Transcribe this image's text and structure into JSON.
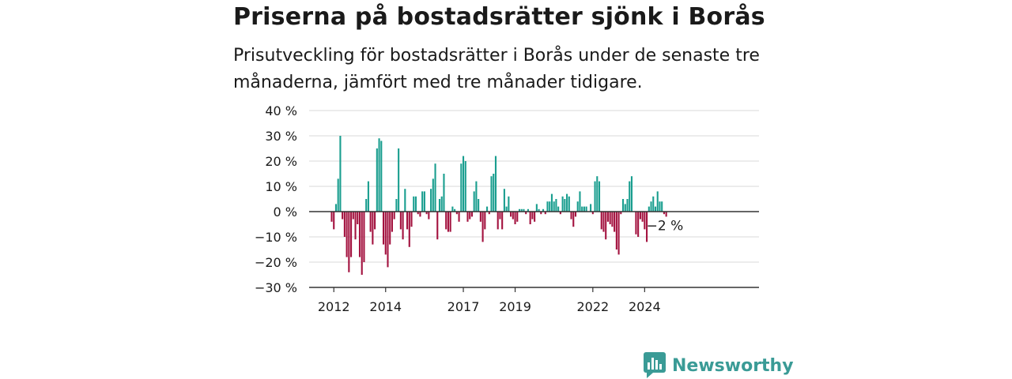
{
  "header": {
    "title": "Priserna på bostadsrätter sjönk i Borås",
    "subtitle": "Prisutveckling för bostadsrätter i Borås under de senaste tre månaderna, jämfört med tre månader tidigare."
  },
  "brand": {
    "name": "Newsworthy",
    "icon": "newsworthy-logo-icon",
    "color": "#3a9b96"
  },
  "chart_data": {
    "type": "bar",
    "x_unit": "month",
    "x_start": "2011-12",
    "y_unit": "%",
    "ylim": [
      -30,
      40
    ],
    "yticks": [
      {
        "value": 40,
        "label": "40 %"
      },
      {
        "value": 30,
        "label": "30 %"
      },
      {
        "value": 20,
        "label": "20 %"
      },
      {
        "value": 10,
        "label": "10 %"
      },
      {
        "value": 0,
        "label": "0 %"
      },
      {
        "value": -10,
        "label": "−10 %"
      },
      {
        "value": -20,
        "label": "−20 %"
      },
      {
        "value": -30,
        "label": "−30 %"
      }
    ],
    "xticks": [
      {
        "label": "2012",
        "index": 1
      },
      {
        "label": "2014",
        "index": 25
      },
      {
        "label": "2017",
        "index": 61
      },
      {
        "label": "2019",
        "index": 85
      },
      {
        "label": "2022",
        "index": 121
      },
      {
        "label": "2024",
        "index": 145
      }
    ],
    "grid": true,
    "colors": {
      "positive": "#1a9e8f",
      "negative": "#a3123f",
      "grid": "#d9d9d9",
      "axis": "#333333"
    },
    "last_value_label": "−2 %",
    "values": [
      -4,
      -7,
      3,
      13,
      30,
      -3,
      -10,
      -18,
      -24,
      -18,
      -3,
      -11,
      -5,
      -18,
      -25,
      -20,
      5,
      12,
      -8,
      -13,
      -7,
      25,
      29,
      28,
      -13,
      -17,
      -22,
      -13,
      -8,
      -3,
      5,
      25,
      -7,
      -11,
      9,
      -7,
      -14,
      -6,
      6,
      6,
      -1,
      -2,
      8,
      8,
      -1,
      -3,
      9,
      13,
      19,
      -11,
      5,
      6,
      15,
      -7,
      -8,
      -8,
      2,
      1,
      -1,
      -4,
      19,
      22,
      20,
      -4,
      -3,
      -2,
      8,
      12,
      5,
      -4,
      -12,
      -7,
      2,
      -1,
      14,
      15,
      22,
      -7,
      -3,
      -7,
      9,
      2,
      6,
      -2,
      -3,
      -5,
      -4,
      1,
      1,
      1,
      -1,
      1,
      -5,
      -3,
      -4,
      3,
      1,
      -1,
      1,
      -1,
      4,
      4,
      7,
      4,
      5,
      2,
      -1,
      6,
      5,
      7,
      6,
      -3,
      -6,
      -2,
      4,
      8,
      2,
      2,
      2,
      0,
      3,
      -1,
      12,
      14,
      12,
      -7,
      -8,
      -11,
      -4,
      -5,
      -6,
      -8,
      -15,
      -17,
      -1,
      5,
      3,
      5,
      12,
      14,
      0,
      -9,
      -10,
      -3,
      -4,
      -7,
      -12,
      2,
      4,
      6,
      2,
      8,
      4,
      4,
      -1,
      -2
    ]
  }
}
